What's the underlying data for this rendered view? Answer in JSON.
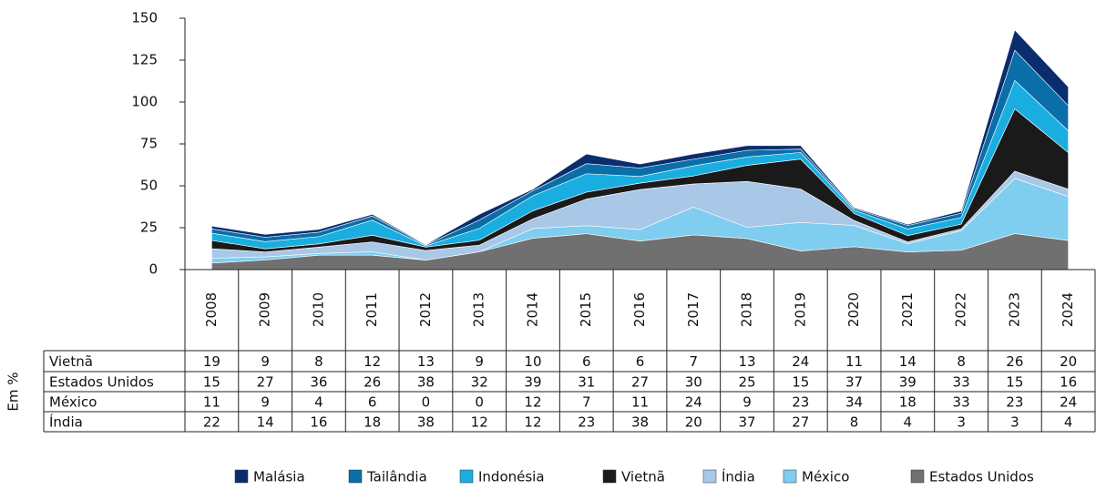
{
  "chart_data": {
    "type": "area",
    "stacked": true,
    "categories": [
      "2008",
      "2009",
      "2010",
      "2011",
      "2012",
      "2013",
      "2014",
      "2015",
      "2016",
      "2017",
      "2018",
      "2019",
      "2020",
      "2021",
      "2022",
      "2023",
      "2024"
    ],
    "ylim": [
      0,
      150
    ],
    "yticks": [
      0,
      25,
      50,
      75,
      100,
      125,
      150
    ],
    "grid": false,
    "legend": "bottom",
    "ylabel": "Em %",
    "series": [
      {
        "name": "Estados Unidos",
        "color": "#707070",
        "values": [
          3.9,
          5.7,
          8.6,
          8.6,
          5.7,
          10.6,
          18.7,
          21.4,
          17.0,
          20.7,
          18.5,
          11.1,
          13.7,
          10.5,
          11.6,
          21.5,
          17.4
        ]
      },
      {
        "name": "México",
        "color": "#7fcdef",
        "values": [
          2.9,
          1.9,
          1.0,
          2.0,
          0,
          0,
          5.8,
          4.8,
          6.9,
          16.6,
          6.7,
          17.0,
          12.6,
          4.9,
          11.6,
          32.9,
          26.2
        ]
      },
      {
        "name": "Índia",
        "color": "#a9c8e8",
        "values": [
          5.7,
          2.9,
          3.8,
          5.9,
          5.7,
          4.0,
          5.8,
          15.9,
          23.9,
          13.8,
          27.4,
          20.0,
          3.0,
          1.1,
          1.1,
          4.3,
          4.4
        ]
      },
      {
        "name": "Vietnã",
        "color": "#1a1a1a",
        "values": [
          4.9,
          1.9,
          1.9,
          4.0,
          2.0,
          3.0,
          4.8,
          4.1,
          3.8,
          4.8,
          9.6,
          17.8,
          4.1,
          3.8,
          2.8,
          37.2,
          21.8
        ]
      },
      {
        "name": "Indonésia",
        "color": "#1aaee0",
        "values": [
          4.3,
          4.3,
          4.4,
          9.0,
          0.8,
          7.0,
          9.0,
          11.0,
          4.0,
          6.0,
          5.0,
          4.0,
          2.0,
          4.0,
          4.0,
          17.0,
          13.0
        ]
      },
      {
        "name": "Tailândia",
        "color": "#0a6ea8",
        "values": [
          2.6,
          2.6,
          2.6,
          2.5,
          0.5,
          5.0,
          3.0,
          6.0,
          5.0,
          4.0,
          4.0,
          2.0,
          1.0,
          2.0,
          2.5,
          18.0,
          15.0
        ]
      },
      {
        "name": "Malásia",
        "color": "#0a2d6e",
        "values": [
          1.7,
          1.7,
          1.7,
          1.0,
          0.3,
          3.4,
          0.9,
          5.8,
          2.4,
          3.1,
          2.8,
          2.1,
          0.6,
          0.7,
          1.4,
          12.1,
          11.2
        ]
      }
    ]
  },
  "table": {
    "rows": [
      {
        "label": "Vietnã",
        "values": [
          19,
          9,
          8,
          12,
          13,
          9,
          10,
          6,
          6,
          7,
          13,
          24,
          11,
          14,
          8,
          26,
          20
        ]
      },
      {
        "label": "Estados Unidos",
        "values": [
          15,
          27,
          36,
          26,
          38,
          32,
          39,
          31,
          27,
          30,
          25,
          15,
          37,
          39,
          33,
          15,
          16
        ]
      },
      {
        "label": "México",
        "values": [
          11,
          9,
          4,
          6,
          0,
          0,
          12,
          7,
          11,
          24,
          9,
          23,
          34,
          18,
          33,
          23,
          24
        ]
      },
      {
        "label": "Índia",
        "values": [
          22,
          14,
          16,
          18,
          38,
          12,
          12,
          23,
          38,
          20,
          37,
          27,
          8,
          4,
          3,
          3,
          4
        ]
      }
    ]
  }
}
